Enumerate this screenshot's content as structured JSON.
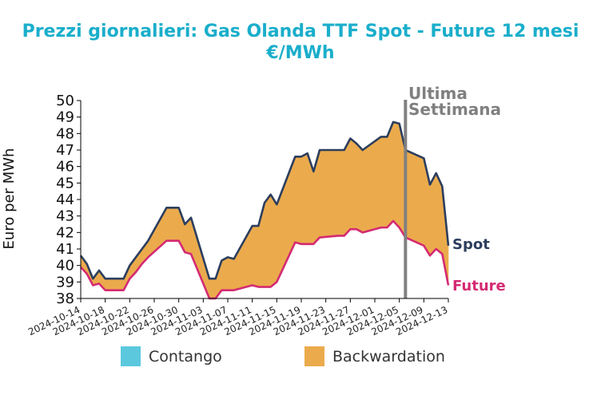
{
  "chart_data": {
    "type": "area",
    "title": "Prezzi giornalieri: Gas Olanda TTF Spot - Future 12 mesi",
    "subtitle": "€/MWh",
    "ylabel": "Euro per MWh",
    "xlabel": "",
    "ylim": [
      38,
      50
    ],
    "y_ticks": [
      38,
      39,
      40,
      41,
      42,
      43,
      44,
      45,
      46,
      47,
      48,
      49,
      50
    ],
    "x_tick_labels": [
      "2024-10-14",
      "2024-10-18",
      "2024-10-22",
      "2024-10-26",
      "2024-10-30",
      "2024-11-03",
      "2024-11-07",
      "2024-11-11",
      "2024-11-15",
      "2024-11-19",
      "2024-11-23",
      "2024-11-27",
      "2024-12-01",
      "2024-12-05",
      "2024-12-09",
      "2024-12-13"
    ],
    "x_range": [
      "2024-10-14",
      "2024-12-13"
    ],
    "x": [
      "2024-10-14",
      "2024-10-15",
      "2024-10-16",
      "2024-10-17",
      "2024-10-18",
      "2024-10-21",
      "2024-10-22",
      "2024-10-23",
      "2024-10-24",
      "2024-10-25",
      "2024-10-28",
      "2024-10-29",
      "2024-10-30",
      "2024-10-31",
      "2024-11-01",
      "2024-11-04",
      "2024-11-05",
      "2024-11-06",
      "2024-11-07",
      "2024-11-08",
      "2024-11-11",
      "2024-11-12",
      "2024-11-13",
      "2024-11-14",
      "2024-11-15",
      "2024-11-18",
      "2024-11-19",
      "2024-11-20",
      "2024-11-21",
      "2024-11-22",
      "2024-11-25",
      "2024-11-26",
      "2024-11-27",
      "2024-11-28",
      "2024-11-29",
      "2024-12-02",
      "2024-12-03",
      "2024-12-04",
      "2024-12-05",
      "2024-12-06",
      "2024-12-09",
      "2024-12-10",
      "2024-12-11",
      "2024-12-12",
      "2024-12-13"
    ],
    "series": [
      {
        "name": "Spot",
        "color": "#2c3e5e",
        "values": [
          40.6,
          40.1,
          39.2,
          39.7,
          39.2,
          39.2,
          40.0,
          40.5,
          41.0,
          41.5,
          43.5,
          43.5,
          43.5,
          42.5,
          42.9,
          39.2,
          39.2,
          40.3,
          40.5,
          40.4,
          42.4,
          42.4,
          43.8,
          44.3,
          43.7,
          46.6,
          46.6,
          46.8,
          45.7,
          47.0,
          47.0,
          47.0,
          47.7,
          47.4,
          47.0,
          47.8,
          47.8,
          48.7,
          48.6,
          47.0,
          46.5,
          44.9,
          45.6,
          44.8,
          41.2
        ]
      },
      {
        "name": "Future",
        "color": "#d42a72",
        "values": [
          39.9,
          39.5,
          38.8,
          38.9,
          38.5,
          38.5,
          39.2,
          39.6,
          40.1,
          40.5,
          41.5,
          41.5,
          41.5,
          40.8,
          40.7,
          38.0,
          38.0,
          38.5,
          38.5,
          38.5,
          38.8,
          38.7,
          38.7,
          38.7,
          39.0,
          41.4,
          41.3,
          41.3,
          41.3,
          41.7,
          41.8,
          41.8,
          42.2,
          42.2,
          42.0,
          42.3,
          42.3,
          42.7,
          42.3,
          41.7,
          41.2,
          40.6,
          41.0,
          40.7,
          38.8
        ]
      }
    ],
    "annotation": {
      "text_line1": "Ultima",
      "text_line2": "Settimana",
      "x": "2024-12-06",
      "color": "#808080"
    },
    "end_labels": {
      "spot": "Spot",
      "future": "Future"
    },
    "fills": {
      "contango_color": "#5bc8de",
      "backwardation_color": "#ebab4c"
    },
    "legend": [
      {
        "label": "Contango",
        "color": "#5bc8de"
      },
      {
        "label": "Backwardation",
        "color": "#ebab4c"
      }
    ],
    "legend_position": "bottom",
    "grid": false
  }
}
